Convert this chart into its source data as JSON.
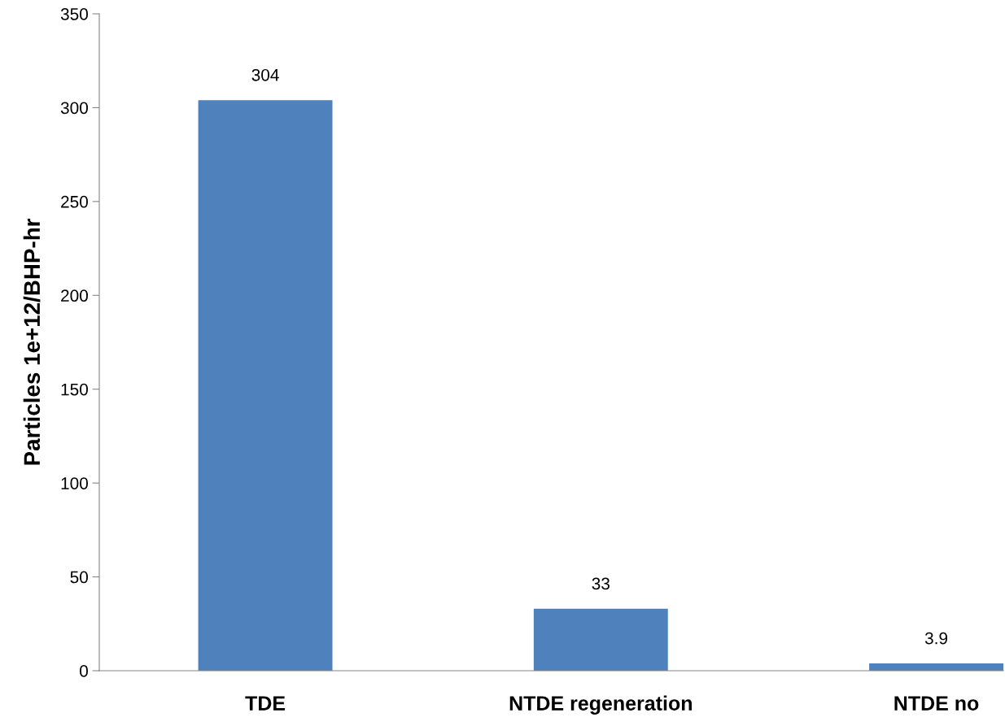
{
  "chart_data": {
    "type": "bar",
    "ylabel": "Particles 1e+12/BHP-hr",
    "categories": [
      "TDE",
      "NTDE regeneration",
      "NTDE no"
    ],
    "values": [
      304,
      33,
      3.9
    ],
    "color": "#4f81bd",
    "ylim": [
      0,
      350
    ],
    "yticks": [
      0,
      50,
      100,
      150,
      200,
      250,
      300,
      350
    ],
    "data_labels": true,
    "grid": false,
    "legend": false
  }
}
